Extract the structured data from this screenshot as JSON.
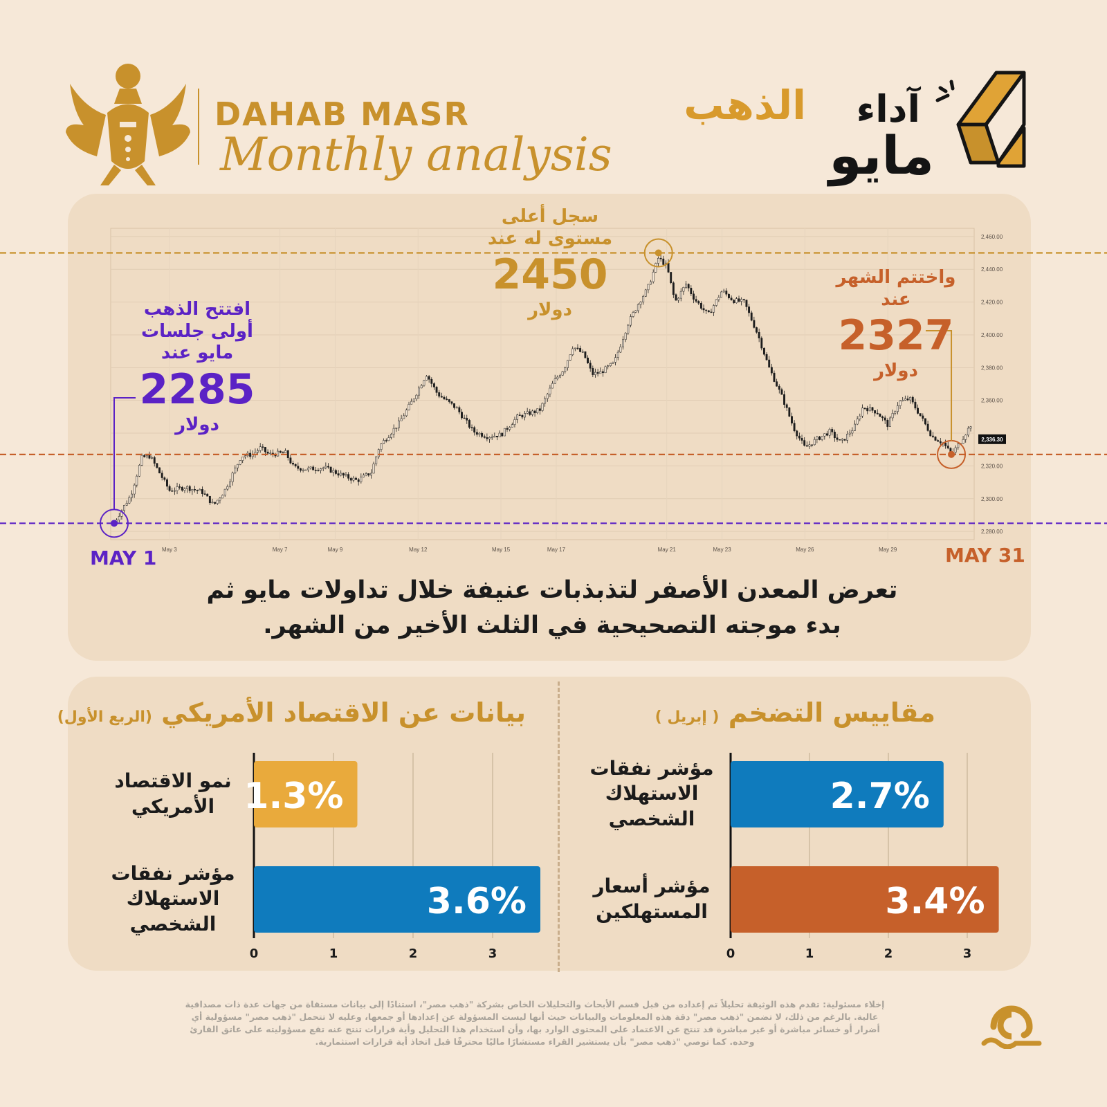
{
  "brand": {
    "name": "DAHAB MASR",
    "subtitle": "Monthly analysis"
  },
  "header": {
    "title_accent": "الذهب",
    "title_main": "آداء",
    "title_month": "مايو"
  },
  "annotations": {
    "open": {
      "label": "افتتح الذهب أولى جلسات مايو عند",
      "value": "2285",
      "currency": "دولار"
    },
    "high": {
      "label": "سجل أعلى مستوى له عند",
      "value": "2450",
      "currency": "دولار"
    },
    "close": {
      "label": "واختتم الشهر عند",
      "value": "2327",
      "currency": "دولار"
    },
    "start_label": "MAY 1",
    "end_label": "MAY 31"
  },
  "caption": "تعرض المعدن الأصفر لتذبذبات عنيفة خلال تداولات مايو ثم بدء موجته التصحيحية في الثلث الأخير من الشهر.",
  "sections": {
    "us_economy": {
      "title": "بيانات عن الاقتصاد الأمريكي",
      "subtitle": "(الربع الأول)"
    },
    "inflation": {
      "title": "مقاييس التضخم",
      "subtitle": "( إبريل )"
    }
  },
  "disclaimer": "إخلاء مسئولية: تقدم هذه الوثيقة تحليلاً تم إعداده من قبل قسم الأبحاث والتحليلات الخاص بشركة \"ذهب مصر\"، استنادًا إلى بيانات مستقاة من جهات عدة ذات مصداقية عالية. بالرغم من ذلك، لا تضمن \"ذهب مصر\" دقة هذه المعلومات والبيانات حيث أنها ليست المسؤولة عن إعدادها أو جمعها، وعليه لا تتحمل \"ذهب مصر\" مسؤولية أي أضرار أو خسائر مباشرة أو غير مباشرة قد تنتج عن الاعتماد على المحتوى الوارد بها، وأن استخدام هذا التحليل وأية قرارات تنتج عنه تقع مسؤوليته على عاتق القارئ وحده. كما توصي \"ذهب مصر\" بأن يستشير القراء مستشارًا ماليًا محترفًا قبل اتخاذ أية قرارات استثمارية.",
  "colors": {
    "gold": "#c8912c",
    "open_purple": "#5b22c5",
    "close_orange": "#c6602a",
    "bar_blue": "#0f7bbd",
    "bar_yellow": "#e9aa3c",
    "bar_orange": "#c6602a",
    "panel_bg": "#efdcc4",
    "page_bg": "#f6e8d8"
  },
  "chart_data": [
    {
      "type": "line",
      "description_type": "candlestick",
      "x_tick_labels": [
        "May 3",
        "May 7",
        "May 9",
        "May 12",
        "May 15",
        "May 17",
        "May 21",
        "May 23",
        "May 26",
        "May 29"
      ],
      "y_tick_labels": [
        "2,460.00",
        "2,440.00",
        "2,420.00",
        "2,400.00",
        "2,380.00",
        "2,360.00",
        "2,320.00",
        "2,300.00",
        "2,280.00"
      ],
      "last_price_label": "2,336.30",
      "ylim": [
        2275,
        2465
      ],
      "reference_lines": [
        {
          "name": "open",
          "value": 2285
        },
        {
          "name": "high",
          "value": 2450
        },
        {
          "name": "close",
          "value": 2327
        }
      ],
      "anchors": [
        [
          0,
          2285
        ],
        [
          0.2,
          2291
        ],
        [
          0.6,
          2302
        ],
        [
          1.0,
          2325
        ],
        [
          1.3,
          2326
        ],
        [
          2.0,
          2305
        ],
        [
          2.6,
          2307
        ],
        [
          3.2,
          2304
        ],
        [
          3.6,
          2296
        ],
        [
          4.0,
          2305
        ],
        [
          4.6,
          2326
        ],
        [
          5.0,
          2327
        ],
        [
          5.3,
          2331
        ],
        [
          5.6,
          2327
        ],
        [
          6.2,
          2328
        ],
        [
          6.5,
          2319
        ],
        [
          7.0,
          2318
        ],
        [
          7.6,
          2319
        ],
        [
          8.3,
          2314
        ],
        [
          8.8,
          2311
        ],
        [
          9.3,
          2316
        ],
        [
          9.6,
          2332
        ],
        [
          10.3,
          2346
        ],
        [
          10.8,
          2360
        ],
        [
          11.3,
          2376
        ],
        [
          11.7,
          2364
        ],
        [
          12.4,
          2355
        ],
        [
          13.0,
          2341
        ],
        [
          13.5,
          2338
        ],
        [
          14.0,
          2339
        ],
        [
          14.6,
          2350
        ],
        [
          15.4,
          2354
        ],
        [
          15.9,
          2371
        ],
        [
          16.3,
          2380
        ],
        [
          16.6,
          2393
        ],
        [
          17.0,
          2388
        ],
        [
          17.3,
          2376
        ],
        [
          17.6,
          2377
        ],
        [
          18.1,
          2383
        ],
        [
          18.6,
          2407
        ],
        [
          19.0,
          2420
        ],
        [
          19.3,
          2428
        ],
        [
          19.7,
          2447
        ],
        [
          20.0,
          2442
        ],
        [
          20.3,
          2420
        ],
        [
          20.7,
          2431
        ],
        [
          21.0,
          2422
        ],
        [
          21.5,
          2412
        ],
        [
          22.0,
          2427
        ],
        [
          22.4,
          2421
        ],
        [
          22.8,
          2420
        ],
        [
          23.3,
          2400
        ],
        [
          23.7,
          2380
        ],
        [
          24.2,
          2361
        ],
        [
          24.6,
          2343
        ],
        [
          25.0,
          2331
        ],
        [
          25.4,
          2336
        ],
        [
          25.9,
          2341
        ],
        [
          26.3,
          2334
        ],
        [
          26.8,
          2344
        ],
        [
          27.1,
          2356
        ],
        [
          27.6,
          2353
        ],
        [
          28.0,
          2345
        ],
        [
          28.4,
          2359
        ],
        [
          28.8,
          2361
        ],
        [
          29.2,
          2350
        ],
        [
          29.6,
          2338
        ],
        [
          30.0,
          2334
        ],
        [
          30.3,
          2327
        ],
        [
          30.6,
          2334
        ],
        [
          31.0,
          2345
        ]
      ]
    },
    {
      "type": "bar",
      "title": "بيانات عن الاقتصاد الأمريكي",
      "subtitle": "(الربع الأول)",
      "categories": [
        "نمو الاقتصاد الأمريكي",
        "مؤشر نفقات الاستهلاك الشخصي"
      ],
      "values": [
        1.3,
        3.6
      ],
      "value_labels": [
        "1.3%",
        "3.6%"
      ],
      "colors": [
        "#e9aa3c",
        "#0f7bbd"
      ],
      "xlim": [
        0,
        3.6
      ],
      "x_ticks": [
        "0",
        "1",
        "2",
        "3"
      ]
    },
    {
      "type": "bar",
      "title": "مقاييس التضخم",
      "subtitle": "( إبريل )",
      "categories": [
        "مؤشر نفقات الاستهلاك الشخصي",
        "مؤشر أسعار المستهلكين"
      ],
      "values": [
        2.7,
        3.4
      ],
      "value_labels": [
        "2.7%",
        "3.4%"
      ],
      "colors": [
        "#0f7bbd",
        "#c6602a"
      ],
      "xlim": [
        0,
        3.4
      ],
      "x_ticks": [
        "0",
        "1",
        "2",
        "3"
      ]
    }
  ]
}
